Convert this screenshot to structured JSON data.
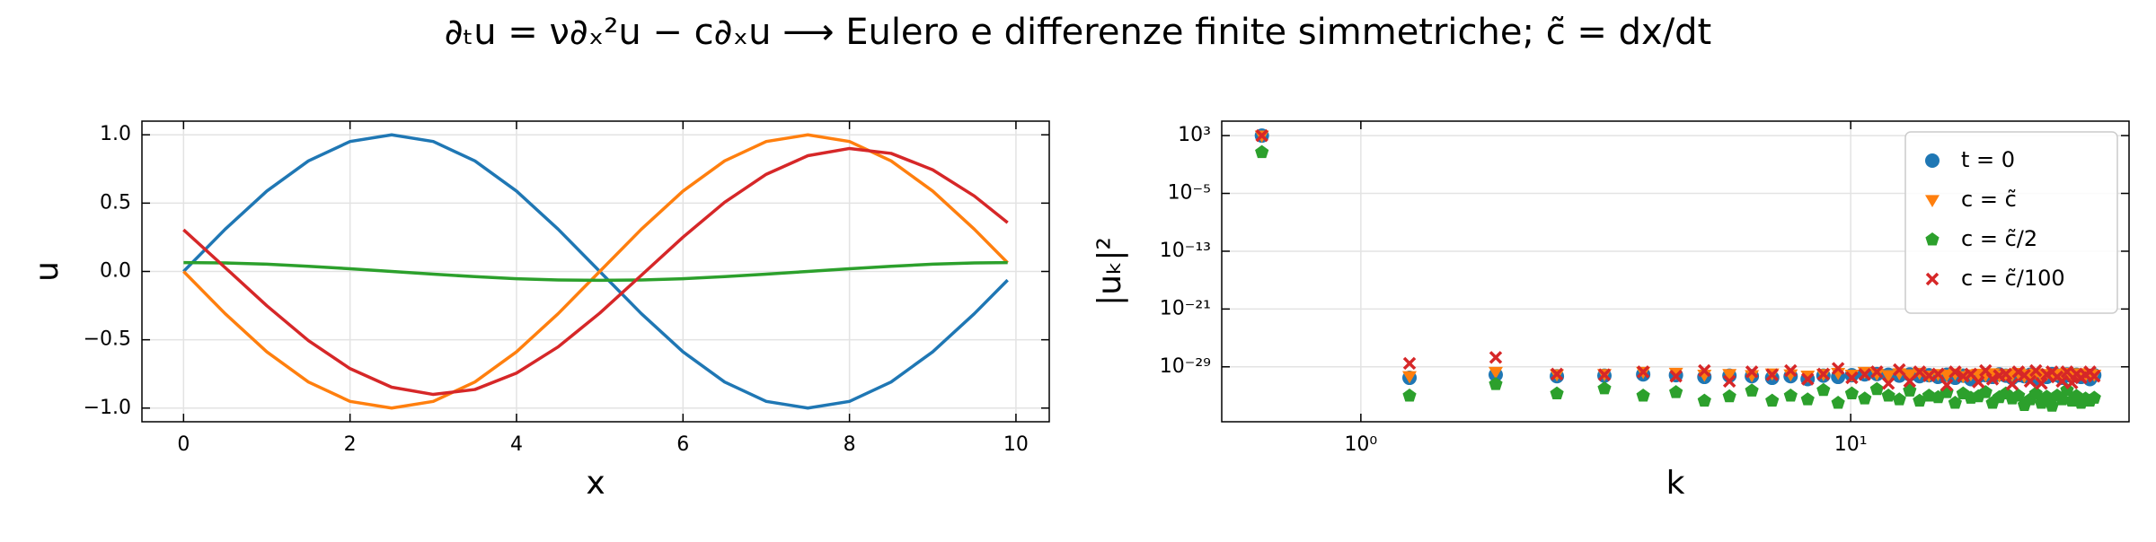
{
  "title": "∂ₜu = ν∂ₓ²u − c∂ₓu  ⟶  Eulero e differenze finite simmetriche; c̃ = dx/dt",
  "chart_data": [
    {
      "type": "line",
      "xlabel": "x",
      "ylabel": "u",
      "grid": true,
      "xlim": [
        -0.5,
        10.4
      ],
      "ylim": [
        -1.1,
        1.1
      ],
      "xticks": [
        0,
        2,
        4,
        6,
        8,
        10
      ],
      "yticks": [
        {
          "value": 1,
          "label": "1.0"
        },
        {
          "value": 0.5,
          "label": "0.5"
        },
        {
          "value": 0,
          "label": "0.0"
        },
        {
          "value": -0.5,
          "label": "−0.5"
        },
        {
          "value": -1,
          "label": "−1.0"
        }
      ],
      "x": [
        0,
        0.5,
        1,
        1.5,
        2,
        2.5,
        3,
        3.5,
        4,
        4.5,
        5,
        5.5,
        6,
        6.5,
        7,
        7.5,
        8,
        8.5,
        9,
        9.5,
        9.9
      ],
      "series": [
        {
          "color": "#1f77b4",
          "values": [
            0,
            0.309,
            0.588,
            0.809,
            0.951,
            1,
            0.951,
            0.809,
            0.588,
            0.309,
            0,
            -0.309,
            -0.588,
            -0.809,
            -0.951,
            -1,
            -0.951,
            -0.809,
            -0.588,
            -0.309,
            -0.063
          ]
        },
        {
          "color": "#ff7f0e",
          "values": [
            0,
            -0.309,
            -0.588,
            -0.809,
            -0.951,
            -1,
            -0.951,
            -0.809,
            -0.588,
            -0.309,
            0,
            0.309,
            0.588,
            0.809,
            0.951,
            1,
            0.951,
            0.809,
            0.588,
            0.309,
            0.063
          ]
        },
        {
          "color": "#2ca02c",
          "values": [
            0.065,
            0.062,
            0.053,
            0.038,
            0.02,
            0,
            -0.02,
            -0.038,
            -0.053,
            -0.062,
            -0.065,
            -0.062,
            -0.053,
            -0.038,
            -0.02,
            0,
            0.02,
            0.038,
            0.053,
            0.062,
            0.065
          ]
        },
        {
          "color": "#d62728",
          "values": [
            0.305,
            0.028,
            -0.251,
            -0.506,
            -0.711,
            -0.847,
            -0.9,
            -0.864,
            -0.744,
            -0.552,
            -0.305,
            -0.028,
            0.251,
            0.506,
            0.711,
            0.847,
            0.9,
            0.864,
            0.744,
            0.552,
            0.357
          ]
        }
      ]
    },
    {
      "type": "scatter",
      "xlabel": "k",
      "ylabel": "|uₖ|²",
      "grid": true,
      "xscale": "log",
      "yscale": "log",
      "legend": "upper right",
      "xlim": [
        0.52,
        37
      ],
      "ylim": [
        2.5e-37,
        100000.0
      ],
      "xticks": [
        {
          "value": 1,
          "label": "10⁰"
        },
        {
          "value": 10,
          "label": "10¹"
        }
      ],
      "yticks": [
        {
          "value": 1000.0,
          "label": "10³"
        },
        {
          "value": 1e-05,
          "label": "10⁻⁵"
        },
        {
          "value": 1e-13,
          "label": "10⁻¹³"
        },
        {
          "value": 1e-21,
          "label": "10⁻²¹"
        },
        {
          "value": 1e-29,
          "label": "10⁻²⁹"
        }
      ],
      "x": [
        0.628,
        1.257,
        1.885,
        2.513,
        3.142,
        3.77,
        4.398,
        5.027,
        5.655,
        6.283,
        6.912,
        7.54,
        8.168,
        8.796,
        9.425,
        10.053,
        10.681,
        11.31,
        11.938,
        12.566,
        13.195,
        13.823,
        14.451,
        15.08,
        15.708,
        16.336,
        16.965,
        17.593,
        18.221,
        18.85,
        19.478,
        20.106,
        20.735,
        21.363,
        21.991,
        22.619,
        23.248,
        23.876,
        24.504,
        25.133,
        25.761,
        26.389,
        27.018,
        27.646,
        28.274,
        28.903,
        29.531,
        30.159,
        30.788,
        31.416
      ],
      "series": [
        {
          "name": "t = 0",
          "color": "#1f77b4",
          "marker": "o",
          "values": [
            1000.0,
            3e-31,
            8e-31,
            5e-31,
            6e-31,
            9e-31,
            7e-31,
            4e-31,
            6e-31,
            5e-31,
            3e-31,
            5e-31,
            2e-31,
            6e-31,
            4e-31,
            7e-31,
            9e-31,
            1e-30,
            8e-31,
            6e-31,
            9e-31,
            5e-31,
            7e-31,
            4e-31,
            8e-31,
            3e-31,
            6e-31,
            2e-31,
            5e-31,
            7e-31,
            4e-31,
            9e-31,
            6e-31,
            3e-31,
            7e-31,
            5e-31,
            8e-31,
            2e-31,
            6e-31,
            4e-31,
            1e-30,
            7e-31,
            3e-31,
            9e-31,
            5e-31,
            8e-31,
            4e-31,
            6e-31,
            2e-31,
            7e-31
          ]
        },
        {
          "name": "c = c̃",
          "color": "#ff7f0e",
          "marker": "v",
          "values": [
            1000.0,
            5e-31,
            2e-30,
            9e-31,
            1e-30,
            2e-30,
            1.5e-30,
            8e-31,
            1e-30,
            7e-31,
            1.2e-30,
            9e-31,
            6e-31,
            1e-30,
            1.4e-30,
            8e-31,
            2e-30,
            1.1e-30,
            7e-31,
            1.3e-30,
            9e-31,
            1.5e-30,
            6e-31,
            1e-30,
            8e-31,
            1.2e-30,
            5e-31,
            9e-31,
            1.1e-30,
            7e-31,
            1.3e-30,
            6e-31,
            1e-30,
            8e-31,
            1.4e-30,
            5e-31,
            9e-31,
            1.2e-30,
            7e-31,
            1e-30,
            6e-31,
            1.1e-30,
            8e-31,
            1.5e-30,
            5e-31,
            9e-31,
            1.3e-30,
            7e-31,
            1e-30,
            8e-31
          ]
        },
        {
          "name": "c = c̃/2",
          "color": "#2ca02c",
          "marker": "p",
          "values": [
            5,
            1e-33,
            4e-32,
            2e-33,
            1e-32,
            1e-33,
            3e-33,
            2e-34,
            8e-34,
            5e-33,
            2e-34,
            1e-33,
            3e-34,
            6e-33,
            1e-34,
            2e-33,
            4e-34,
            8e-33,
            1e-33,
            3e-34,
            5e-33,
            2e-34,
            1e-33,
            6e-34,
            3e-33,
            1e-34,
            2e-33,
            5e-34,
            8e-34,
            3e-33,
            1e-34,
            6e-34,
            2e-33,
            4e-34,
            1e-33,
            5e-35,
            3e-34,
            2e-33,
            1e-34,
            7e-34,
            4e-35,
            1e-33,
            3e-34,
            6e-33,
            2e-34,
            9e-34,
            1e-34,
            4e-34,
            2e-34,
            5e-34
          ]
        },
        {
          "name": "c = c̃/100",
          "color": "#d62728",
          "marker": "x",
          "values": [
            1000.0,
            3e-29,
            2e-28,
            1e-30,
            8e-31,
            2e-30,
            5e-31,
            3e-30,
            1e-31,
            2e-30,
            8e-31,
            3e-30,
            2e-31,
            1e-30,
            6e-30,
            3e-31,
            9e-31,
            2e-30,
            5e-32,
            4e-30,
            1e-31,
            2e-30,
            6e-31,
            1e-30,
            3e-32,
            2e-30,
            5e-31,
            1e-30,
            8e-32,
            3e-30,
            2e-31,
            6e-31,
            1e-30,
            4e-32,
            2e-30,
            7e-31,
            1e-31,
            3e-30,
            5e-32,
            9e-31,
            2e-30,
            4e-31,
            1e-31,
            2e-30,
            6e-32,
            1e-30,
            3e-31,
            8e-31,
            2e-30,
            5e-31
          ]
        }
      ]
    }
  ]
}
